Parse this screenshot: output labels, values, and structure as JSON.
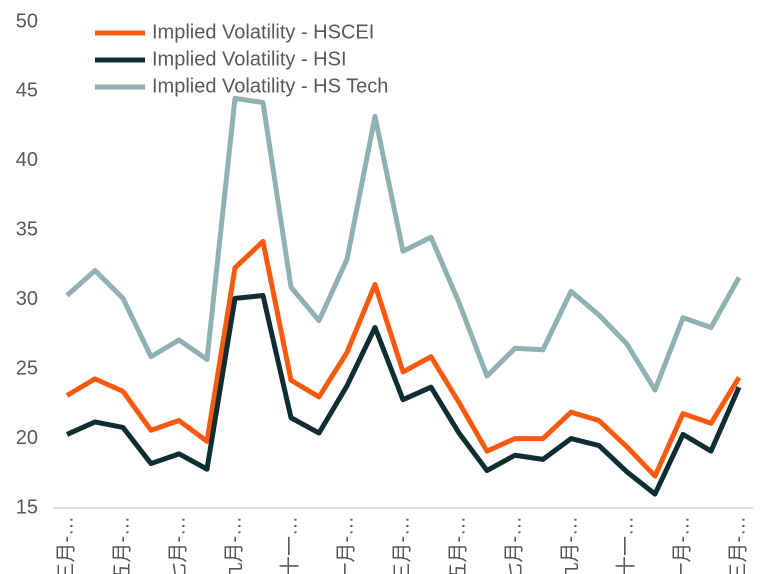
{
  "chart_data": {
    "type": "line",
    "categories": [
      "三月-…",
      null,
      "五月-…",
      null,
      "七月-…",
      null,
      "九月-…",
      null,
      "十一…",
      null,
      "一月-…",
      null,
      "三月-…",
      null,
      "五月-…",
      null,
      "七月-…",
      null,
      "九月-…",
      null,
      "十一…",
      null,
      "一月-…",
      null,
      "三月-…"
    ],
    "series": [
      {
        "name": "Implied Volatility - HSCEI",
        "color": "#fa5a0f",
        "values": [
          23.1,
          24.3,
          23.4,
          20.6,
          21.3,
          19.8,
          32.3,
          34.2,
          24.2,
          23.0,
          26.2,
          31.1,
          24.8,
          25.9,
          22.6,
          19.1,
          20.0,
          20.0,
          21.9,
          21.3,
          19.4,
          17.3,
          21.8,
          21.1,
          24.4
        ]
      },
      {
        "name": "Implied Volatility - HSI",
        "color": "#0e2e33",
        "values": [
          20.3,
          21.2,
          20.8,
          18.2,
          18.9,
          17.8,
          30.1,
          30.3,
          21.5,
          20.4,
          23.8,
          28.0,
          22.8,
          23.7,
          20.4,
          17.7,
          18.8,
          18.5,
          20.0,
          19.5,
          17.6,
          16.0,
          20.3,
          19.1,
          23.7
        ]
      },
      {
        "name": "Implied Volatility - HS Tech",
        "color": "#8fb1b2",
        "values": [
          30.3,
          32.1,
          30.1,
          25.9,
          27.1,
          25.7,
          44.5,
          44.2,
          30.9,
          28.5,
          32.9,
          43.2,
          33.5,
          34.5,
          29.8,
          24.5,
          26.5,
          26.4,
          30.6,
          28.9,
          26.8,
          23.5,
          28.7,
          28.0,
          31.6
        ]
      }
    ],
    "ylim": [
      15,
      50
    ],
    "yticks": [
      15,
      20,
      25,
      30,
      35,
      40,
      45,
      50
    ],
    "grid": false,
    "legend": "top-left"
  }
}
